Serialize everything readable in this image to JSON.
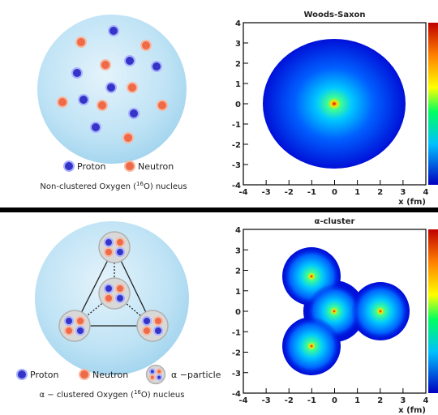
{
  "chart_data": [
    {
      "type": "heatmap",
      "title": "Woods-Saxon",
      "xlabel": "x (fm)",
      "xlim": [
        -4,
        4
      ],
      "ylim": [
        -4,
        4
      ],
      "xticks": [
        -4,
        -3,
        -2,
        -1,
        0,
        1,
        2,
        3,
        4
      ],
      "yticks": [
        -4,
        -3,
        -2,
        -1,
        0,
        1,
        2,
        3,
        4
      ]
    },
    {
      "type": "heatmap",
      "title": "α-cluster",
      "xlabel": "x (fm)",
      "xlim": [
        -4,
        4
      ],
      "ylim": [
        -4,
        4
      ],
      "xticks": [
        -4,
        -3,
        -2,
        -1,
        0,
        1,
        2,
        3,
        4
      ],
      "yticks": [
        -4,
        -3,
        -2,
        -1,
        0,
        1,
        2,
        3,
        4
      ]
    }
  ],
  "diagrams": [
    {
      "legend": [
        "Proton",
        "Neutron"
      ],
      "caption": {
        "before": "Non-clustered Oxygen (",
        "sup": "16",
        "after": "O) nucleus"
      }
    },
    {
      "legend": [
        "Proton",
        "Neutron",
        "α −particle"
      ],
      "caption": {
        "before": "α − clustered Oxygen (",
        "sup": "16",
        "after": "O) nucleus"
      }
    }
  ]
}
